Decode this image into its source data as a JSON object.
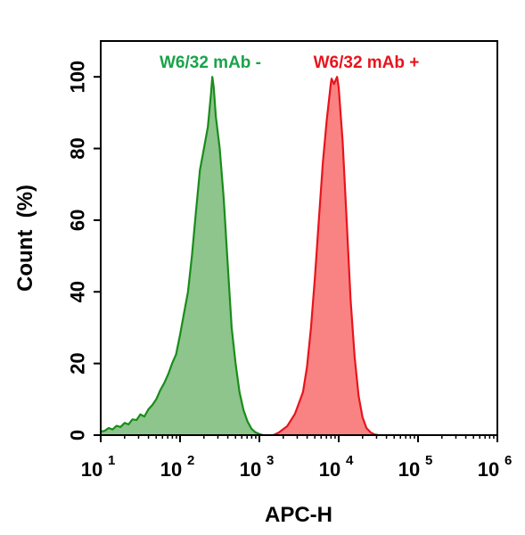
{
  "chart_data": {
    "type": "area",
    "title": "",
    "xlabel": "APC-H",
    "ylabel": "Count  (%)",
    "x_scale": "log",
    "xlim": [
      10,
      1000000
    ],
    "ylim": [
      0,
      110
    ],
    "x_ticks": [
      {
        "value": 10,
        "base": "10",
        "exp": "1"
      },
      {
        "value": 100,
        "base": "10",
        "exp": "2"
      },
      {
        "value": 1000,
        "base": "10",
        "exp": "3"
      },
      {
        "value": 10000,
        "base": "10",
        "exp": "4"
      },
      {
        "value": 100000,
        "base": "10",
        "exp": "5"
      },
      {
        "value": 1000000,
        "base": "10",
        "exp": "6"
      }
    ],
    "y_ticks": [
      {
        "value": 0,
        "label": "0"
      },
      {
        "value": 20,
        "label": "20"
      },
      {
        "value": 40,
        "label": "40"
      },
      {
        "value": 60,
        "label": "60"
      },
      {
        "value": 80,
        "label": "80"
      },
      {
        "value": 100,
        "label": "100"
      }
    ],
    "grid": false,
    "legend_placement": "top",
    "series": [
      {
        "name": "W6/32 mAb -",
        "line_color": "#1a8c1a",
        "fill_color": "#8dc58d",
        "label_color": "#1aa34a",
        "points": [
          [
            10,
            1
          ],
          [
            11.2,
            1.2
          ],
          [
            12.6,
            2
          ],
          [
            14.1,
            1.6
          ],
          [
            15.8,
            2.6
          ],
          [
            17.8,
            2.3
          ],
          [
            20,
            3.4
          ],
          [
            22.4,
            3
          ],
          [
            25.1,
            4.4
          ],
          [
            28.2,
            4.2
          ],
          [
            31.6,
            5.8
          ],
          [
            35.5,
            5.2
          ],
          [
            39.8,
            7.2
          ],
          [
            44.7,
            8.4
          ],
          [
            50.1,
            10
          ],
          [
            56.2,
            12.5
          ],
          [
            63.1,
            14.5
          ],
          [
            70.8,
            17
          ],
          [
            79.4,
            20
          ],
          [
            89.1,
            22.5
          ],
          [
            100,
            28
          ],
          [
            112,
            34
          ],
          [
            126,
            40
          ],
          [
            141,
            50
          ],
          [
            158,
            62
          ],
          [
            178,
            74
          ],
          [
            200,
            80
          ],
          [
            224,
            86
          ],
          [
            245,
            95
          ],
          [
            255,
            100
          ],
          [
            266,
            97
          ],
          [
            282,
            89
          ],
          [
            316,
            80
          ],
          [
            355,
            66
          ],
          [
            398,
            48
          ],
          [
            447,
            30
          ],
          [
            501,
            20
          ],
          [
            562,
            12
          ],
          [
            631,
            7
          ],
          [
            708,
            3.8
          ],
          [
            794,
            1.8
          ],
          [
            891,
            0.8
          ],
          [
            1000,
            0.3
          ],
          [
            1122,
            0
          ]
        ]
      },
      {
        "name": "W6/32 mAb +",
        "line_color": "#e8141c",
        "fill_color": "#f98383",
        "label_color": "#e8141c",
        "points": [
          [
            1500,
            0
          ],
          [
            1778,
            0.8
          ],
          [
            2239,
            2.5
          ],
          [
            2818,
            6
          ],
          [
            3162,
            9
          ],
          [
            3548,
            12
          ],
          [
            3981,
            19
          ],
          [
            4467,
            30
          ],
          [
            5012,
            44
          ],
          [
            5623,
            60
          ],
          [
            6310,
            76
          ],
          [
            7079,
            88
          ],
          [
            7943,
            98
          ],
          [
            8128,
            99.5
          ],
          [
            8710,
            98
          ],
          [
            9550,
            100
          ],
          [
            10000,
            97
          ],
          [
            11220,
            82
          ],
          [
            12589,
            60
          ],
          [
            14125,
            38
          ],
          [
            15849,
            22
          ],
          [
            17783,
            11
          ],
          [
            19953,
            5
          ],
          [
            22387,
            2
          ],
          [
            25119,
            0.8
          ],
          [
            28184,
            0.2
          ],
          [
            31623,
            0
          ]
        ]
      }
    ]
  }
}
